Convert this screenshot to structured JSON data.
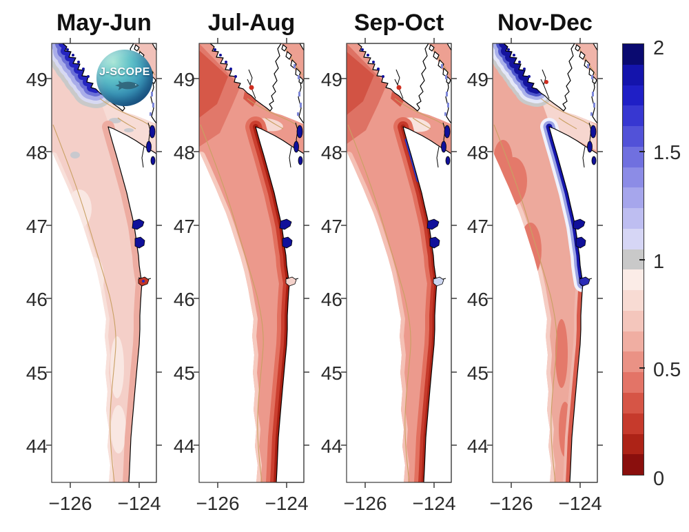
{
  "figure": {
    "panel_titles": [
      "May-Jun",
      "Jul-Aug",
      "Sep-Oct",
      "Nov-Dec"
    ],
    "axes": {
      "lat_ticks": [
        "49",
        "48",
        "47",
        "46",
        "45",
        "44"
      ],
      "lon_ticks": [
        "−126",
        "−124"
      ]
    },
    "logo": {
      "text": "J-SCOPE"
    },
    "colorbar": {
      "tick_labels": [
        "2",
        "1.5",
        "1",
        "0.5",
        "0"
      ],
      "colors": [
        "#0a0a70",
        "#1414ac",
        "#1f1fc6",
        "#3737d1",
        "#5252d8",
        "#7070df",
        "#8c8ce6",
        "#a6a6ec",
        "#bebef1",
        "#d6d6f5",
        "#c9c9c9",
        "#fbece7",
        "#f8dbd3",
        "#f4c6bc",
        "#f0aea2",
        "#ea9285",
        "#e37467",
        "#d65546",
        "#c63a2c",
        "#ad2317",
        "#8a0f0d"
      ]
    },
    "map_palette": {
      "land": "#ffffff",
      "coastline": "#000000",
      "isobath_contour": "#c9a063",
      "estuary_water": "#10109a",
      "panel_base_fills": [
        "#f4cfc8",
        "#ec998c",
        "#ec9a8d",
        "#eda99c"
      ]
    }
  },
  "chart_data": {
    "type": "heatmap",
    "title": "",
    "panels": [
      {
        "label": "May-Jun",
        "pattern": "pale pink/red values (~0.5-0.9) over most of the shelf; blue band (>1) along northwest Vancouver Island coast; gray near-1 patches in Strait of Juan de Fuca; blue estuaries (~2)"
      },
      {
        "label": "Jul-Aug",
        "pattern": "dark red band (<0.3) hugging the Washington-Oregon coast; medium red (~0.5) offshore and off southern Vancouver Island"
      },
      {
        "label": "Sep-Oct",
        "pattern": "similar to Jul-Aug with dark red nearshore band; thin blue strip (>1.5) right at the northern Washington coast"
      },
      {
        "label": "Nov-Dec",
        "pattern": "dark blue band (>1.5) along the coast from Vancouver Island to about 46N; medium red (~0.5) offshore; red band resumes south of 46N"
      }
    ],
    "x_axis": {
      "label": "",
      "ticks": [
        -126,
        -124
      ],
      "range": [
        -126.5,
        -123.5
      ]
    },
    "y_axis": {
      "label": "",
      "ticks": [
        49,
        48,
        47,
        46,
        45,
        44
      ],
      "range": [
        43.5,
        49.5
      ]
    },
    "colorbar": {
      "min": 0,
      "max": 2,
      "ticks": [
        0,
        0.5,
        1,
        1.5,
        2
      ],
      "n_bands": 21,
      "colors_top_to_bottom": [
        "#0a0a70",
        "#1414ac",
        "#1f1fc6",
        "#3737d1",
        "#5252d8",
        "#7070df",
        "#8c8ce6",
        "#a6a6ec",
        "#bebef1",
        "#d6d6f5",
        "#c9c9c9",
        "#fbece7",
        "#f8dbd3",
        "#f4c6bc",
        "#f0aea2",
        "#ea9285",
        "#e37467",
        "#d65546",
        "#c63a2c",
        "#ad2317",
        "#8a0f0d"
      ]
    },
    "legend_position": "right",
    "grid": false
  }
}
